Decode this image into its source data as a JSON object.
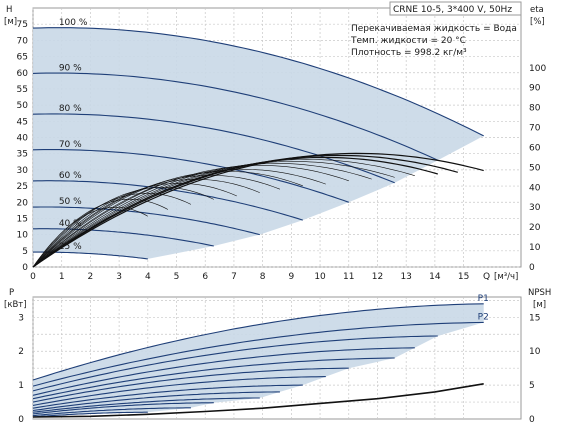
{
  "chart_data": [
    {
      "type": "line",
      "header": "CRNE 10-5, 3*400 V, 50Hz",
      "info_lines": [
        "Перекачиваемая жидкость = Вода",
        "Темп. жидкости = 20 °C",
        "Плотность = 998.2 кг/м³"
      ],
      "y_left": {
        "symbol": "H",
        "unit": "[м]",
        "ylim": [
          0,
          80
        ],
        "ticks": [
          "0",
          "5",
          "10",
          "15",
          "20",
          "25",
          "30",
          "35",
          "40",
          "45",
          "50",
          "55",
          "60",
          "65",
          "70",
          "75"
        ]
      },
      "y_right": {
        "symbol": "eta",
        "unit": "[%]",
        "ylim": [
          0,
          130
        ],
        "ticks": [
          "0",
          "10",
          "20",
          "30",
          "40",
          "50",
          "60",
          "70",
          "80",
          "90",
          "100"
        ]
      },
      "x": {
        "symbol": "Q",
        "unit": "[м³/ч]",
        "xlim": [
          0,
          17
        ],
        "ticks": [
          "0",
          "1",
          "2",
          "3",
          "4",
          "5",
          "6",
          "7",
          "8",
          "9",
          "10",
          "11",
          "12",
          "13",
          "14",
          "15"
        ]
      },
      "grid": true,
      "speed_curves": [
        {
          "name": "100 %",
          "h0": 73.8,
          "qmax": 15.7,
          "hend": 40.5
        },
        {
          "name": "90 %",
          "h0": 59.8,
          "qmax": 14.1,
          "hend": 33.0
        },
        {
          "name": "80 %",
          "h0": 47.2,
          "qmax": 12.6,
          "hend": 26.0
        },
        {
          "name": "70 %",
          "h0": 36.2,
          "qmax": 11.0,
          "hend": 20.0
        },
        {
          "name": "60 %",
          "h0": 26.6,
          "qmax": 9.4,
          "hend": 14.5
        },
        {
          "name": "50 %",
          "h0": 18.5,
          "qmax": 7.9,
          "hend": 10.0
        },
        {
          "name": "40 %",
          "h0": 11.8,
          "qmax": 6.3,
          "hend": 6.5
        },
        {
          "name": "25 %",
          "h0": 4.6,
          "qmax": 4.0,
          "hend": 2.5
        }
      ],
      "eta_curves": [
        {
          "etamax": 57,
          "qmax": 15.7
        },
        {
          "etamax": 56,
          "qmax": 14.8
        },
        {
          "etamax": 55,
          "qmax": 14.1
        },
        {
          "etamax": 54,
          "qmax": 13.3
        },
        {
          "etamax": 53,
          "qmax": 12.6
        },
        {
          "etamax": 52,
          "qmax": 11.8
        },
        {
          "etamax": 51,
          "qmax": 11.0
        },
        {
          "etamax": 49,
          "qmax": 10.2
        },
        {
          "etamax": 48,
          "qmax": 9.4
        },
        {
          "etamax": 46,
          "qmax": 8.6
        },
        {
          "etamax": 44,
          "qmax": 7.9
        },
        {
          "etamax": 42,
          "qmax": 7.1
        },
        {
          "etamax": 40,
          "qmax": 6.3
        },
        {
          "etamax": 37,
          "qmax": 5.5
        },
        {
          "etamax": 34,
          "qmax": 4.7
        },
        {
          "etamax": 30,
          "qmax": 4.0
        }
      ]
    },
    {
      "type": "line",
      "y_left": {
        "symbol": "P",
        "unit": "[кВт]",
        "ylim": [
          0,
          3.6
        ],
        "ticks": [
          "0",
          "1",
          "2",
          "3"
        ]
      },
      "y_right": {
        "symbol": "NPSH",
        "unit": "[м]",
        "ylim": [
          0,
          18
        ],
        "ticks": [
          "0",
          "5",
          "10",
          "15"
        ]
      },
      "grid": true,
      "power_curves": [
        {
          "name": "P1",
          "p0": 1.15,
          "pmax": 3.4,
          "qmax": 15.7
        },
        {
          "name": "P2",
          "p0": 0.97,
          "pmax": 2.85,
          "qmax": 15.7
        },
        {
          "p0": 0.83,
          "pmax": 2.45,
          "qmax": 14.1
        },
        {
          "p0": 0.7,
          "pmax": 2.1,
          "qmax": 13.3
        },
        {
          "p0": 0.6,
          "pmax": 1.8,
          "qmax": 12.6
        },
        {
          "p0": 0.5,
          "pmax": 1.5,
          "qmax": 11.0
        },
        {
          "p0": 0.4,
          "pmax": 1.25,
          "qmax": 10.2
        },
        {
          "p0": 0.32,
          "pmax": 1.0,
          "qmax": 9.4
        },
        {
          "p0": 0.25,
          "pmax": 0.8,
          "qmax": 8.6
        },
        {
          "p0": 0.2,
          "pmax": 0.62,
          "qmax": 7.9
        },
        {
          "p0": 0.15,
          "pmax": 0.48,
          "qmax": 6.3
        },
        {
          "p0": 0.1,
          "pmax": 0.33,
          "qmax": 5.5
        },
        {
          "p0": 0.06,
          "pmax": 0.2,
          "qmax": 4.0
        }
      ],
      "npsh": {
        "q": [
          0,
          2,
          4,
          6,
          8,
          10,
          12,
          14,
          15.7
        ],
        "v": [
          0.3,
          0.4,
          0.7,
          1.1,
          1.6,
          2.3,
          3.0,
          4.0,
          5.2
        ]
      }
    }
  ]
}
